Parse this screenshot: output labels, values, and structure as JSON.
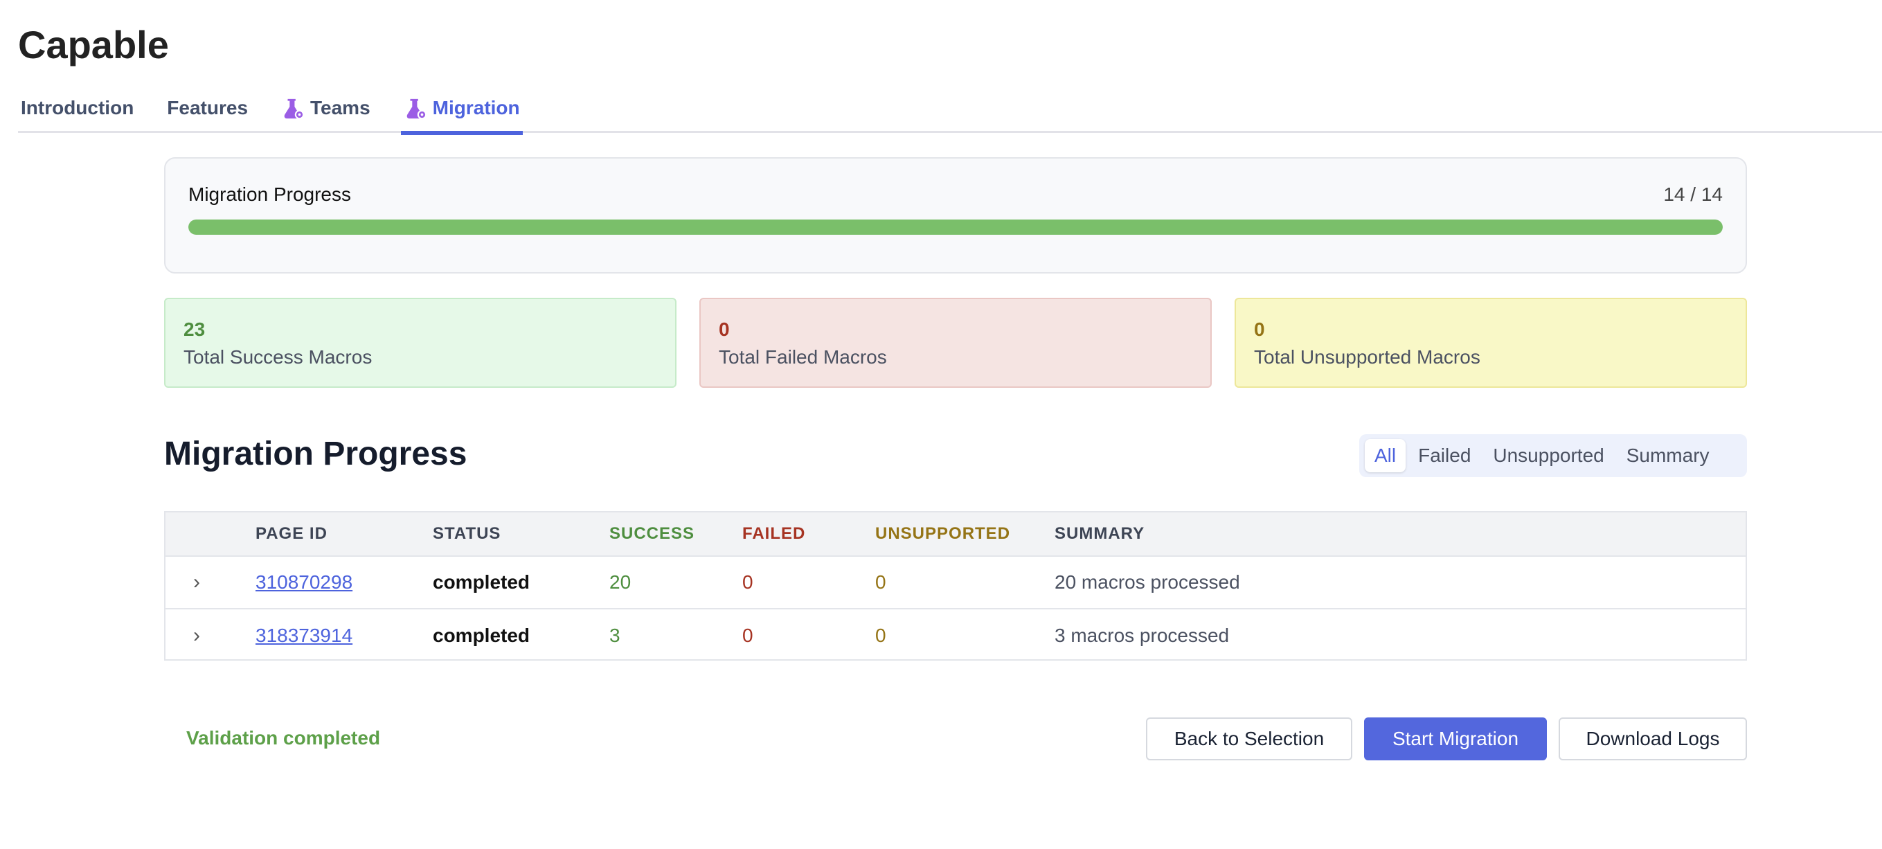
{
  "app": {
    "title": "Capable"
  },
  "tabs": [
    {
      "label": "Introduction",
      "icon": null
    },
    {
      "label": "Features",
      "icon": null
    },
    {
      "label": "Teams",
      "icon": "flask-gear-icon"
    },
    {
      "label": "Migration",
      "icon": "flask-gear-icon",
      "active": true
    }
  ],
  "progress": {
    "label": "Migration Progress",
    "count": "14 / 14",
    "completed": 14,
    "total": 14,
    "percent": 100,
    "color": "#7abf6a"
  },
  "stats": [
    {
      "value": "23",
      "label": "Total Success Macros"
    },
    {
      "value": "0",
      "label": "Total Failed Macros"
    },
    {
      "value": "0",
      "label": "Total Unsupported Macros"
    }
  ],
  "section": {
    "heading": "Migration Progress"
  },
  "filters": [
    {
      "label": "All",
      "active": true
    },
    {
      "label": "Failed"
    },
    {
      "label": "Unsupported"
    },
    {
      "label": "Summary"
    }
  ],
  "table": {
    "columns": [
      "PAGE ID",
      "STATUS",
      "SUCCESS",
      "FAILED",
      "UNSUPPORTED",
      "SUMMARY"
    ],
    "rows": [
      {
        "page_id": "310870298",
        "status": "completed",
        "success": "20",
        "failed": "0",
        "unsupported": "0",
        "summary": "20 macros processed"
      },
      {
        "page_id": "318373914",
        "status": "completed",
        "success": "3",
        "failed": "0",
        "unsupported": "0",
        "summary": "3 macros processed"
      }
    ]
  },
  "footer": {
    "status": "Validation completed",
    "back": "Back to Selection",
    "start": "Start Migration",
    "download": "Download Logs"
  },
  "colors": {
    "accent": "#4d63dd",
    "success": "#4e8e3f",
    "failed": "#a63322",
    "unsupported": "#957416"
  }
}
